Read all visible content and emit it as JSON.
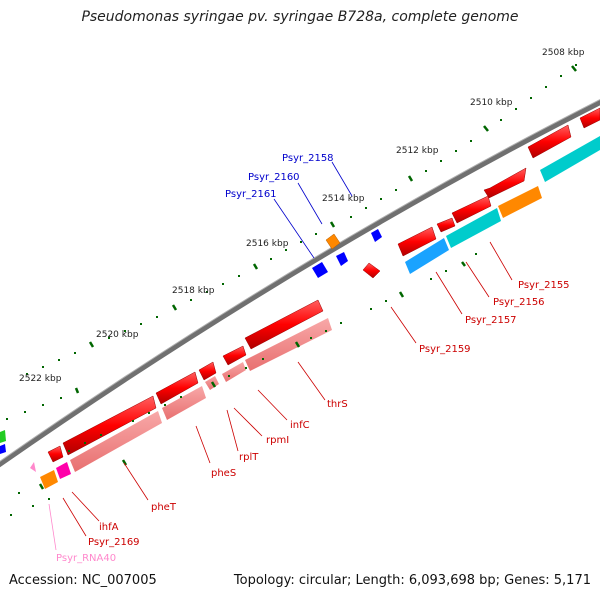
{
  "title": "Pseudomonas syringae pv. syringae B728a, complete genome",
  "footer": {
    "accession": "Accession: NC_007005",
    "topology": "Topology: circular; Length: 6,093,698 bp; Genes: 5,171"
  },
  "colors": {
    "backbone": "#707070",
    "cds": "#ff0000",
    "cds_lower": "#f08888",
    "cds_labels": "#cc0000",
    "upper_labels": "#0000cc",
    "pink_label": "#ff88cc",
    "tick": "#006600",
    "orange": "#ff8800",
    "cyan": "#00cccc",
    "sky": "#1aa3ff",
    "blue": "#0000ff",
    "magenta": "#ff00aa",
    "green": "#22cc22"
  },
  "kbp_labels": [
    "2508 kbp",
    "2510 kbp",
    "2512 kbp",
    "2514 kbp",
    "2516 kbp",
    "2518 kbp",
    "2520 kbp",
    "2522 kbp"
  ],
  "upper_gene_labels": [
    "Psyr_2158",
    "Psyr_2160",
    "Psyr_2161"
  ],
  "gene_labels": [
    "Psyr_2155",
    "Psyr_2156",
    "Psyr_2157",
    "Psyr_2159",
    "thrS",
    "infC",
    "rpmI",
    "rplT",
    "pheS",
    "pheT",
    "ihfA",
    "Psyr_2169"
  ],
  "rna_labels": [
    "Psyr_RNA40"
  ]
}
